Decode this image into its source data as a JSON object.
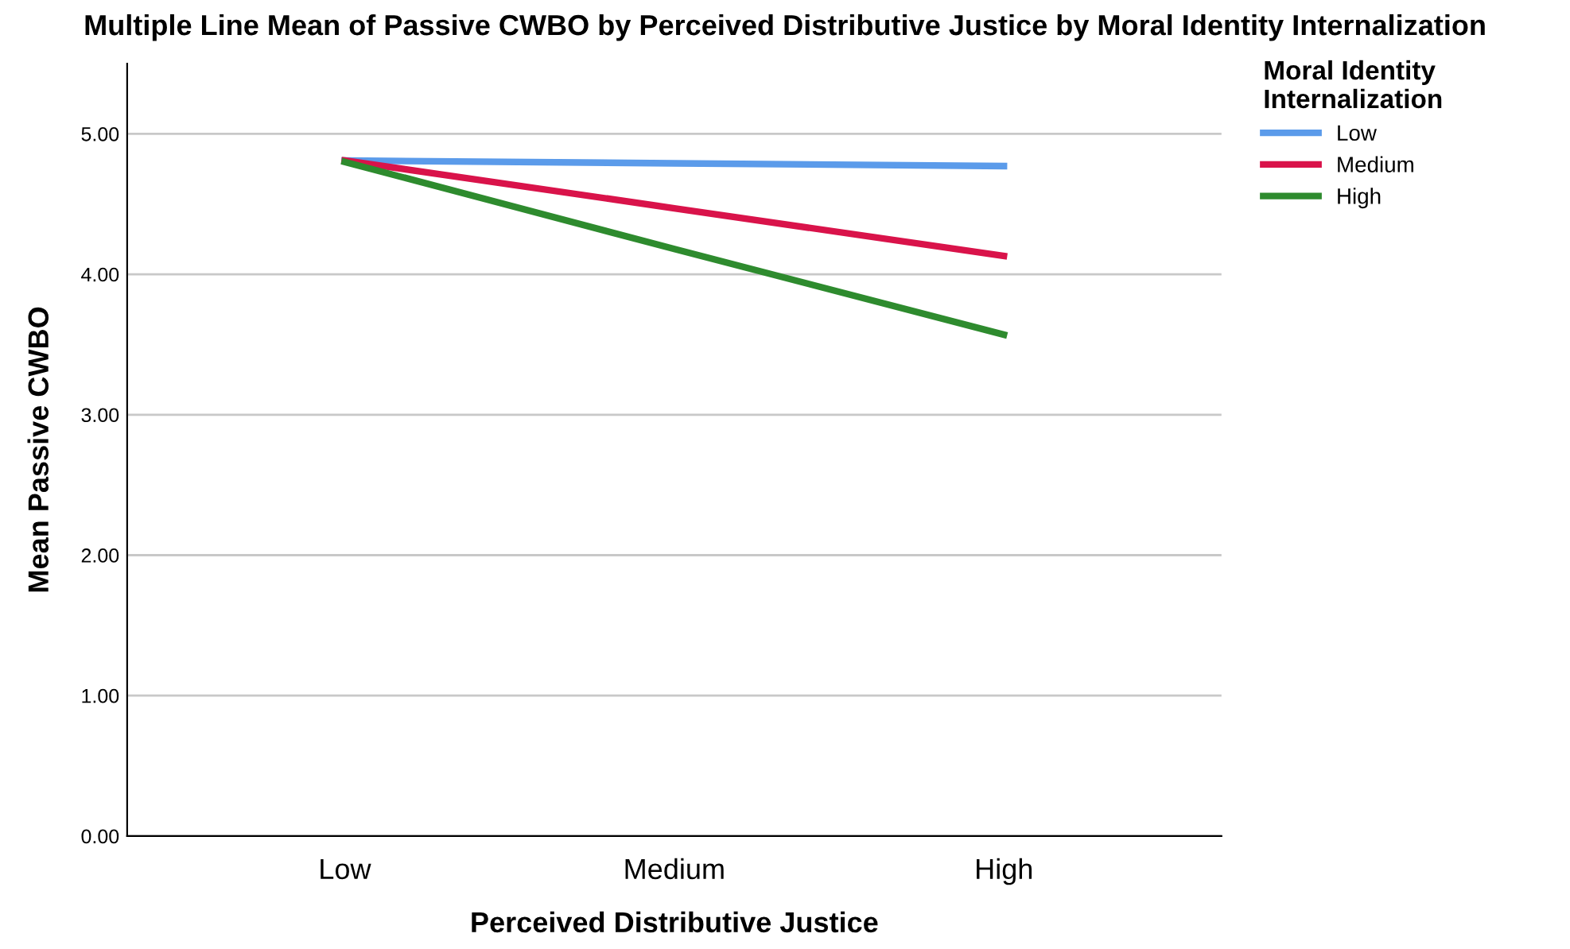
{
  "chart_data": {
    "type": "line",
    "title": "Multiple Line Mean of Passive CWBO by Perceived Distributive Justice by Moral Identity Internalization",
    "xlabel": "Perceived Distributive Justice",
    "ylabel": "Mean Passive CWBO",
    "legend_title": "Moral Identity\nInternalization",
    "categories": [
      "Low",
      "Medium",
      "High"
    ],
    "series": [
      {
        "name": "Low",
        "color": "#5b9bea",
        "values": [
          4.81,
          4.79,
          4.77
        ]
      },
      {
        "name": "Medium",
        "color": "#d9134a",
        "values": [
          4.81,
          4.47,
          4.13
        ]
      },
      {
        "name": "High",
        "color": "#2e8b2e",
        "values": [
          4.8,
          4.18,
          3.57
        ]
      }
    ],
    "ylim": [
      0,
      5.5
    ],
    "yticks": [
      {
        "value": 0,
        "label": "0.00"
      },
      {
        "value": 1,
        "label": "1.00"
      },
      {
        "value": 2,
        "label": "2.00"
      },
      {
        "value": 3,
        "label": "3.00"
      },
      {
        "value": 4,
        "label": "4.00"
      },
      {
        "value": 5,
        "label": "5.00"
      }
    ],
    "grid": "y",
    "legend": "top right",
    "marker": "none",
    "line_style": "solid"
  }
}
